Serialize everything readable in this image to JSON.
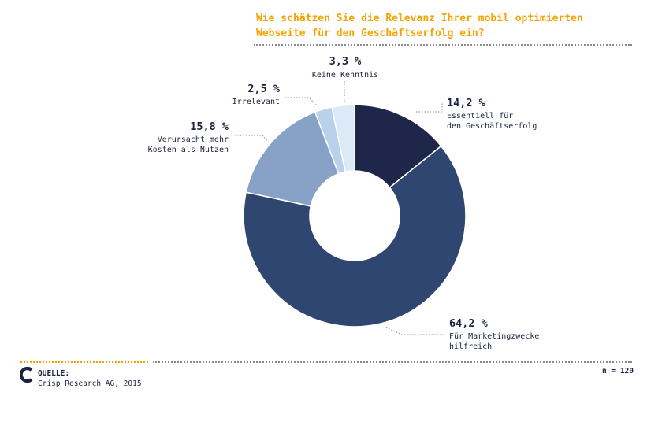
{
  "title": {
    "line1": "Wie schätzen Sie die Relevanz Ihrer mobil optimierten",
    "line2": "Webseite für den Geschäftserfolg ein?"
  },
  "chart_data": {
    "type": "pie",
    "donut": true,
    "slices": [
      {
        "percent_label": "14,2 %",
        "value": 14.2,
        "label_lines": [
          "Essentiell für",
          "den Geschäftserfolg"
        ],
        "color": "#1e2649"
      },
      {
        "percent_label": "64,2 %",
        "value": 64.2,
        "label_lines": [
          "Für Marketingzwecke",
          "hilfreich"
        ],
        "color": "#2f4670"
      },
      {
        "percent_label": "15,8 %",
        "value": 15.8,
        "label_lines": [
          "Verursacht mehr",
          "Kosten als Nutzen"
        ],
        "color": "#87a2c6"
      },
      {
        "percent_label": "2,5 %",
        "value": 2.5,
        "label_lines": [
          "Irrelevant"
        ],
        "color": "#b9d1ea"
      },
      {
        "percent_label": "3,3 %",
        "value": 3.3,
        "label_lines": [
          "Keine Kenntnis"
        ],
        "color": "#daeaf7"
      }
    ]
  },
  "footer": {
    "source_heading": "QUELLE:",
    "source_text": "Crisp Research AG, 2015",
    "sample_size": "n = 120"
  },
  "colors": {
    "title": "#f5a200",
    "accent_rule": "#f5a200",
    "text": "#1c2340"
  }
}
